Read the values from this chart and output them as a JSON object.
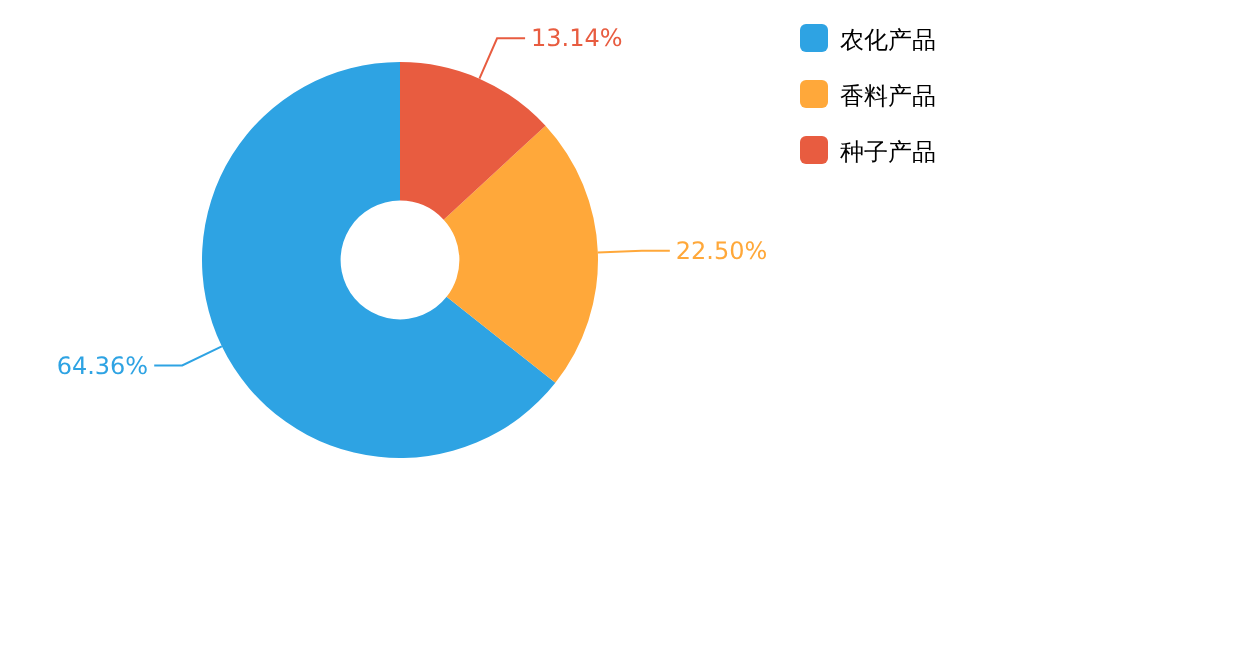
{
  "chart_data": {
    "type": "donut",
    "categories": [
      "农化产品",
      "香料产品",
      "种子产品"
    ],
    "values": [
      64.36,
      22.5,
      13.14
    ],
    "colors": [
      "#2ea3e3",
      "#ffa83a",
      "#e85c40"
    ],
    "value_labels": [
      "64.36%",
      "22.50%",
      "13.14%"
    ],
    "legend": "top right"
  }
}
